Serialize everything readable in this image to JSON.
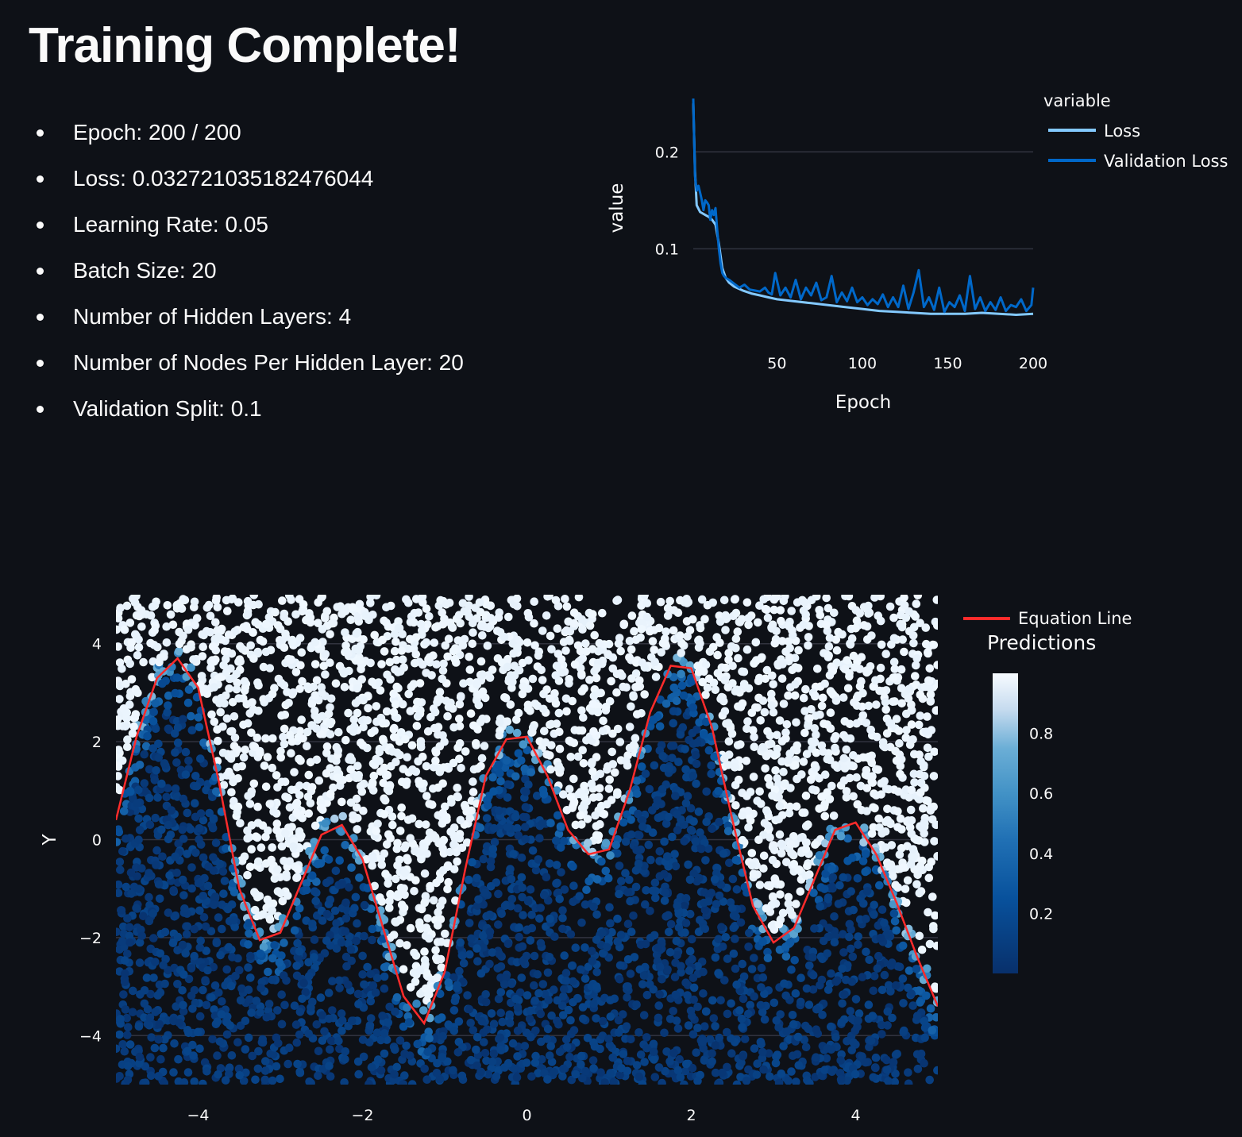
{
  "page": {
    "title": "Training Complete!",
    "info_items": [
      "Epoch: 200 / 200",
      "Loss: 0.032721035182476044",
      "Learning Rate: 0.05",
      "Batch Size: 20",
      "Number of Hidden Layers: 4",
      "Number of Nodes Per Hidden Layer: 20",
      "Validation Split: 0.1"
    ]
  },
  "chart_data": [
    {
      "type": "line",
      "xlabel": "Epoch",
      "ylabel": "value",
      "xlim": [
        1,
        200
      ],
      "ylim": [
        0.025,
        0.26
      ],
      "x_ticks": [
        50,
        100,
        150,
        200
      ],
      "y_ticks": [
        0.1,
        0.2
      ],
      "grid": true,
      "legend_title": "variable",
      "legend_position": "top-right",
      "series": [
        {
          "name": "Loss",
          "color": "#83c9ff",
          "x": [
            1,
            2,
            3,
            5,
            8,
            10,
            12,
            14,
            16,
            18,
            20,
            22,
            25,
            30,
            35,
            40,
            45,
            50,
            60,
            70,
            80,
            90,
            100,
            110,
            120,
            130,
            140,
            150,
            160,
            170,
            180,
            190,
            200
          ],
          "values": [
            0.25,
            0.18,
            0.145,
            0.138,
            0.135,
            0.133,
            0.13,
            0.125,
            0.105,
            0.08,
            0.07,
            0.065,
            0.061,
            0.057,
            0.054,
            0.052,
            0.05,
            0.048,
            0.046,
            0.044,
            0.042,
            0.04,
            0.038,
            0.036,
            0.035,
            0.034,
            0.033,
            0.033,
            0.033,
            0.034,
            0.033,
            0.032,
            0.033
          ]
        },
        {
          "name": "Validation Loss",
          "color": "#0068c9",
          "x": [
            1,
            2,
            3,
            4,
            5,
            6,
            7,
            8,
            9,
            10,
            11,
            12,
            13,
            14,
            15,
            16,
            17,
            18,
            19,
            20,
            22,
            25,
            28,
            31,
            34,
            37,
            40,
            43,
            45,
            47,
            49,
            52,
            55,
            58,
            61,
            64,
            67,
            70,
            73,
            76,
            79,
            82,
            85,
            88,
            91,
            94,
            97,
            100,
            103,
            106,
            109,
            112,
            115,
            118,
            121,
            124,
            127,
            130,
            133,
            136,
            139,
            142,
            145,
            148,
            151,
            154,
            157,
            160,
            163,
            166,
            169,
            172,
            175,
            178,
            181,
            184,
            187,
            190,
            193,
            196,
            199,
            200
          ],
          "values": [
            0.255,
            0.175,
            0.16,
            0.165,
            0.158,
            0.15,
            0.14,
            0.15,
            0.148,
            0.145,
            0.13,
            0.14,
            0.135,
            0.142,
            0.12,
            0.1,
            0.085,
            0.075,
            0.072,
            0.07,
            0.068,
            0.064,
            0.06,
            0.063,
            0.058,
            0.057,
            0.056,
            0.06,
            0.055,
            0.053,
            0.075,
            0.052,
            0.06,
            0.05,
            0.068,
            0.048,
            0.06,
            0.052,
            0.065,
            0.047,
            0.05,
            0.072,
            0.045,
            0.055,
            0.046,
            0.06,
            0.045,
            0.05,
            0.042,
            0.048,
            0.043,
            0.053,
            0.04,
            0.05,
            0.04,
            0.062,
            0.038,
            0.055,
            0.078,
            0.04,
            0.05,
            0.037,
            0.06,
            0.035,
            0.045,
            0.04,
            0.052,
            0.036,
            0.072,
            0.038,
            0.05,
            0.036,
            0.045,
            0.037,
            0.05,
            0.036,
            0.042,
            0.04,
            0.048,
            0.036,
            0.042,
            0.06
          ]
        }
      ]
    },
    {
      "type": "scatter",
      "xlabel": "",
      "ylabel": "Y",
      "xlim": [
        -5,
        5
      ],
      "ylim": [
        -5,
        5
      ],
      "x_ticks": [
        -4,
        -2,
        0,
        2,
        4
      ],
      "y_ticks": [
        -4,
        -2,
        0,
        2,
        4
      ],
      "grid": true,
      "line_series": {
        "name": "Equation Line",
        "color": "#ff2b2b",
        "x": [
          -5,
          -4.75,
          -4.5,
          -4.25,
          -4,
          -3.75,
          -3.5,
          -3.25,
          -3,
          -2.75,
          -2.5,
          -2.25,
          -2,
          -1.75,
          -1.5,
          -1.25,
          -1,
          -0.75,
          -0.5,
          -0.25,
          0,
          0.25,
          0.5,
          0.75,
          1,
          1.25,
          1.5,
          1.75,
          2,
          2.25,
          2.5,
          2.75,
          3,
          3.25,
          3.5,
          3.75,
          4,
          4.25,
          4.5,
          4.75,
          5
        ],
        "values": [
          0.4,
          2.1,
          3.3,
          3.7,
          3.1,
          1.2,
          -1.0,
          -2.05,
          -1.9,
          -0.9,
          0.1,
          0.3,
          -0.4,
          -1.8,
          -3.2,
          -3.75,
          -2.7,
          -0.6,
          1.3,
          2.05,
          2.1,
          1.3,
          0.2,
          -0.3,
          -0.2,
          1.0,
          2.6,
          3.55,
          3.5,
          2.3,
          0.4,
          -1.35,
          -2.1,
          -1.8,
          -0.8,
          0.2,
          0.35,
          -0.3,
          -1.3,
          -2.4,
          -3.4
        ]
      },
      "colorbar": {
        "title": "Predictions",
        "range": [
          0,
          1
        ],
        "ticks": [
          0.2,
          0.4,
          0.6,
          0.8
        ],
        "color_low": "#08306b",
        "color_high": "#f7fbff"
      },
      "legend_position": "top-right"
    }
  ]
}
